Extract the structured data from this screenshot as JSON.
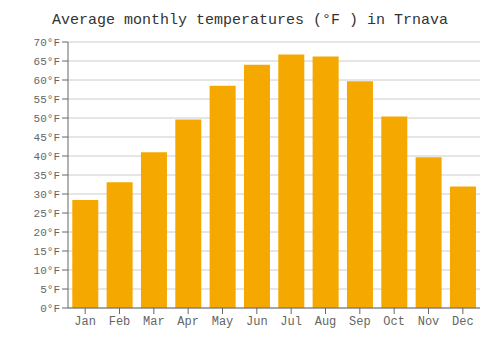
{
  "chart_data": {
    "type": "bar",
    "title": "Average monthly temperatures (°F ) in Trnava",
    "categories": [
      "Jan",
      "Feb",
      "Mar",
      "Apr",
      "May",
      "Jun",
      "Jul",
      "Aug",
      "Sep",
      "Oct",
      "Nov",
      "Dec"
    ],
    "values": [
      28.4,
      33.1,
      41.0,
      49.6,
      58.5,
      64.0,
      66.7,
      66.2,
      59.7,
      50.4,
      39.7,
      32.0
    ],
    "color": "#F5A800",
    "ylim": [
      0,
      70
    ],
    "yticks": [
      {
        "value": 0,
        "label": "0°F"
      },
      {
        "value": 5,
        "label": "5°F"
      },
      {
        "value": 10,
        "label": "10°F"
      },
      {
        "value": 15,
        "label": "15°F"
      },
      {
        "value": 20,
        "label": "20°F"
      },
      {
        "value": 25,
        "label": "25°F"
      },
      {
        "value": 30,
        "label": "30°F"
      },
      {
        "value": 35,
        "label": "35°F"
      },
      {
        "value": 40,
        "label": "40°F"
      },
      {
        "value": 45,
        "label": "45°F"
      },
      {
        "value": 50,
        "label": "50°F"
      },
      {
        "value": 55,
        "label": "55°F"
      },
      {
        "value": 60,
        "label": "60°F"
      },
      {
        "value": 65,
        "label": "65°F"
      },
      {
        "value": 70,
        "label": "70°F"
      }
    ],
    "grid": true
  }
}
